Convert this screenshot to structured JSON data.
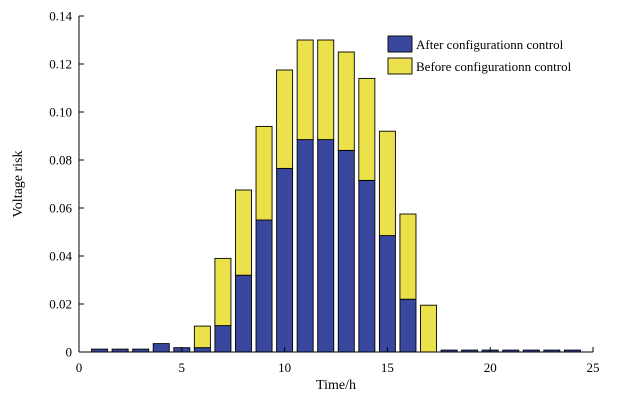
{
  "chart_data": {
    "type": "bar",
    "stacked": true,
    "x": [
      1,
      2,
      3,
      4,
      5,
      6,
      7,
      8,
      9,
      10,
      11,
      12,
      13,
      14,
      15,
      16,
      17,
      18,
      19,
      20,
      21,
      22,
      23,
      24
    ],
    "series": [
      {
        "name": "After configurationn control",
        "color": "#3a479e",
        "values": [
          0.0012,
          0.0012,
          0.0012,
          0.0035,
          0.0018,
          0.0018,
          0.011,
          0.032,
          0.055,
          0.0765,
          0.0885,
          0.0885,
          0.084,
          0.0715,
          0.0485,
          0.022,
          0,
          0.0008,
          0.0008,
          0.0008,
          0.0008,
          0.0008,
          0.0008,
          0.0008
        ]
      },
      {
        "name": "Before configurationn control",
        "color": "#ebe14a",
        "values": [
          0,
          0,
          0,
          0,
          0,
          0.009,
          0.028,
          0.0355,
          0.039,
          0.041,
          0.0415,
          0.0415,
          0.041,
          0.0425,
          0.0435,
          0.0355,
          0.0195,
          0,
          0,
          0,
          0,
          0,
          0,
          0
        ]
      }
    ],
    "xlabel": "Time/h",
    "ylabel": "Voltage risk",
    "xlim": [
      0,
      25
    ],
    "ylim": [
      0,
      0.14
    ],
    "xticks": [
      0,
      5,
      10,
      15,
      20,
      25
    ],
    "yticks": [
      0,
      0.02,
      0.04,
      0.06,
      0.08,
      0.1,
      0.12,
      0.14
    ],
    "ytick_labels": [
      "0",
      "0.02",
      "0.04",
      "0.06",
      "0.08",
      "0.10",
      "0.12",
      "0.14"
    ],
    "xtick_labels": [
      "0",
      "5",
      "10",
      "15",
      "20",
      "25"
    ],
    "grid": false,
    "legend_position": "top-right"
  }
}
